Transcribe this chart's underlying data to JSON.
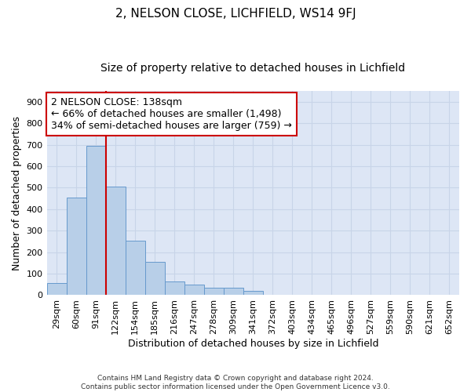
{
  "title_line1": "2, NELSON CLOSE, LICHFIELD, WS14 9FJ",
  "title_line2": "Size of property relative to detached houses in Lichfield",
  "xlabel": "Distribution of detached houses by size in Lichfield",
  "ylabel": "Number of detached properties",
  "categories": [
    "29sqm",
    "60sqm",
    "91sqm",
    "122sqm",
    "154sqm",
    "185sqm",
    "216sqm",
    "247sqm",
    "278sqm",
    "309sqm",
    "341sqm",
    "372sqm",
    "403sqm",
    "434sqm",
    "465sqm",
    "496sqm",
    "527sqm",
    "559sqm",
    "590sqm",
    "621sqm",
    "652sqm"
  ],
  "values": [
    55,
    455,
    695,
    505,
    255,
    155,
    65,
    50,
    35,
    35,
    20,
    0,
    0,
    0,
    0,
    0,
    0,
    0,
    0,
    0,
    0
  ],
  "bar_color": "#b8cfe8",
  "bar_edge_color": "#6699cc",
  "vline_color": "#cc0000",
  "annotation_text": "2 NELSON CLOSE: 138sqm\n← 66% of detached houses are smaller (1,498)\n34% of semi-detached houses are larger (759) →",
  "annotation_box_color": "#ffffff",
  "annotation_box_edge_color": "#cc0000",
  "ylim": [
    0,
    950
  ],
  "yticks": [
    0,
    100,
    200,
    300,
    400,
    500,
    600,
    700,
    800,
    900
  ],
  "grid_color": "#c8d4e8",
  "bg_color": "#dde6f5",
  "footnote": "Contains HM Land Registry data © Crown copyright and database right 2024.\nContains public sector information licensed under the Open Government Licence v3.0.",
  "title_fontsize": 11,
  "subtitle_fontsize": 10,
  "label_fontsize": 9,
  "tick_fontsize": 8,
  "annot_fontsize": 9
}
